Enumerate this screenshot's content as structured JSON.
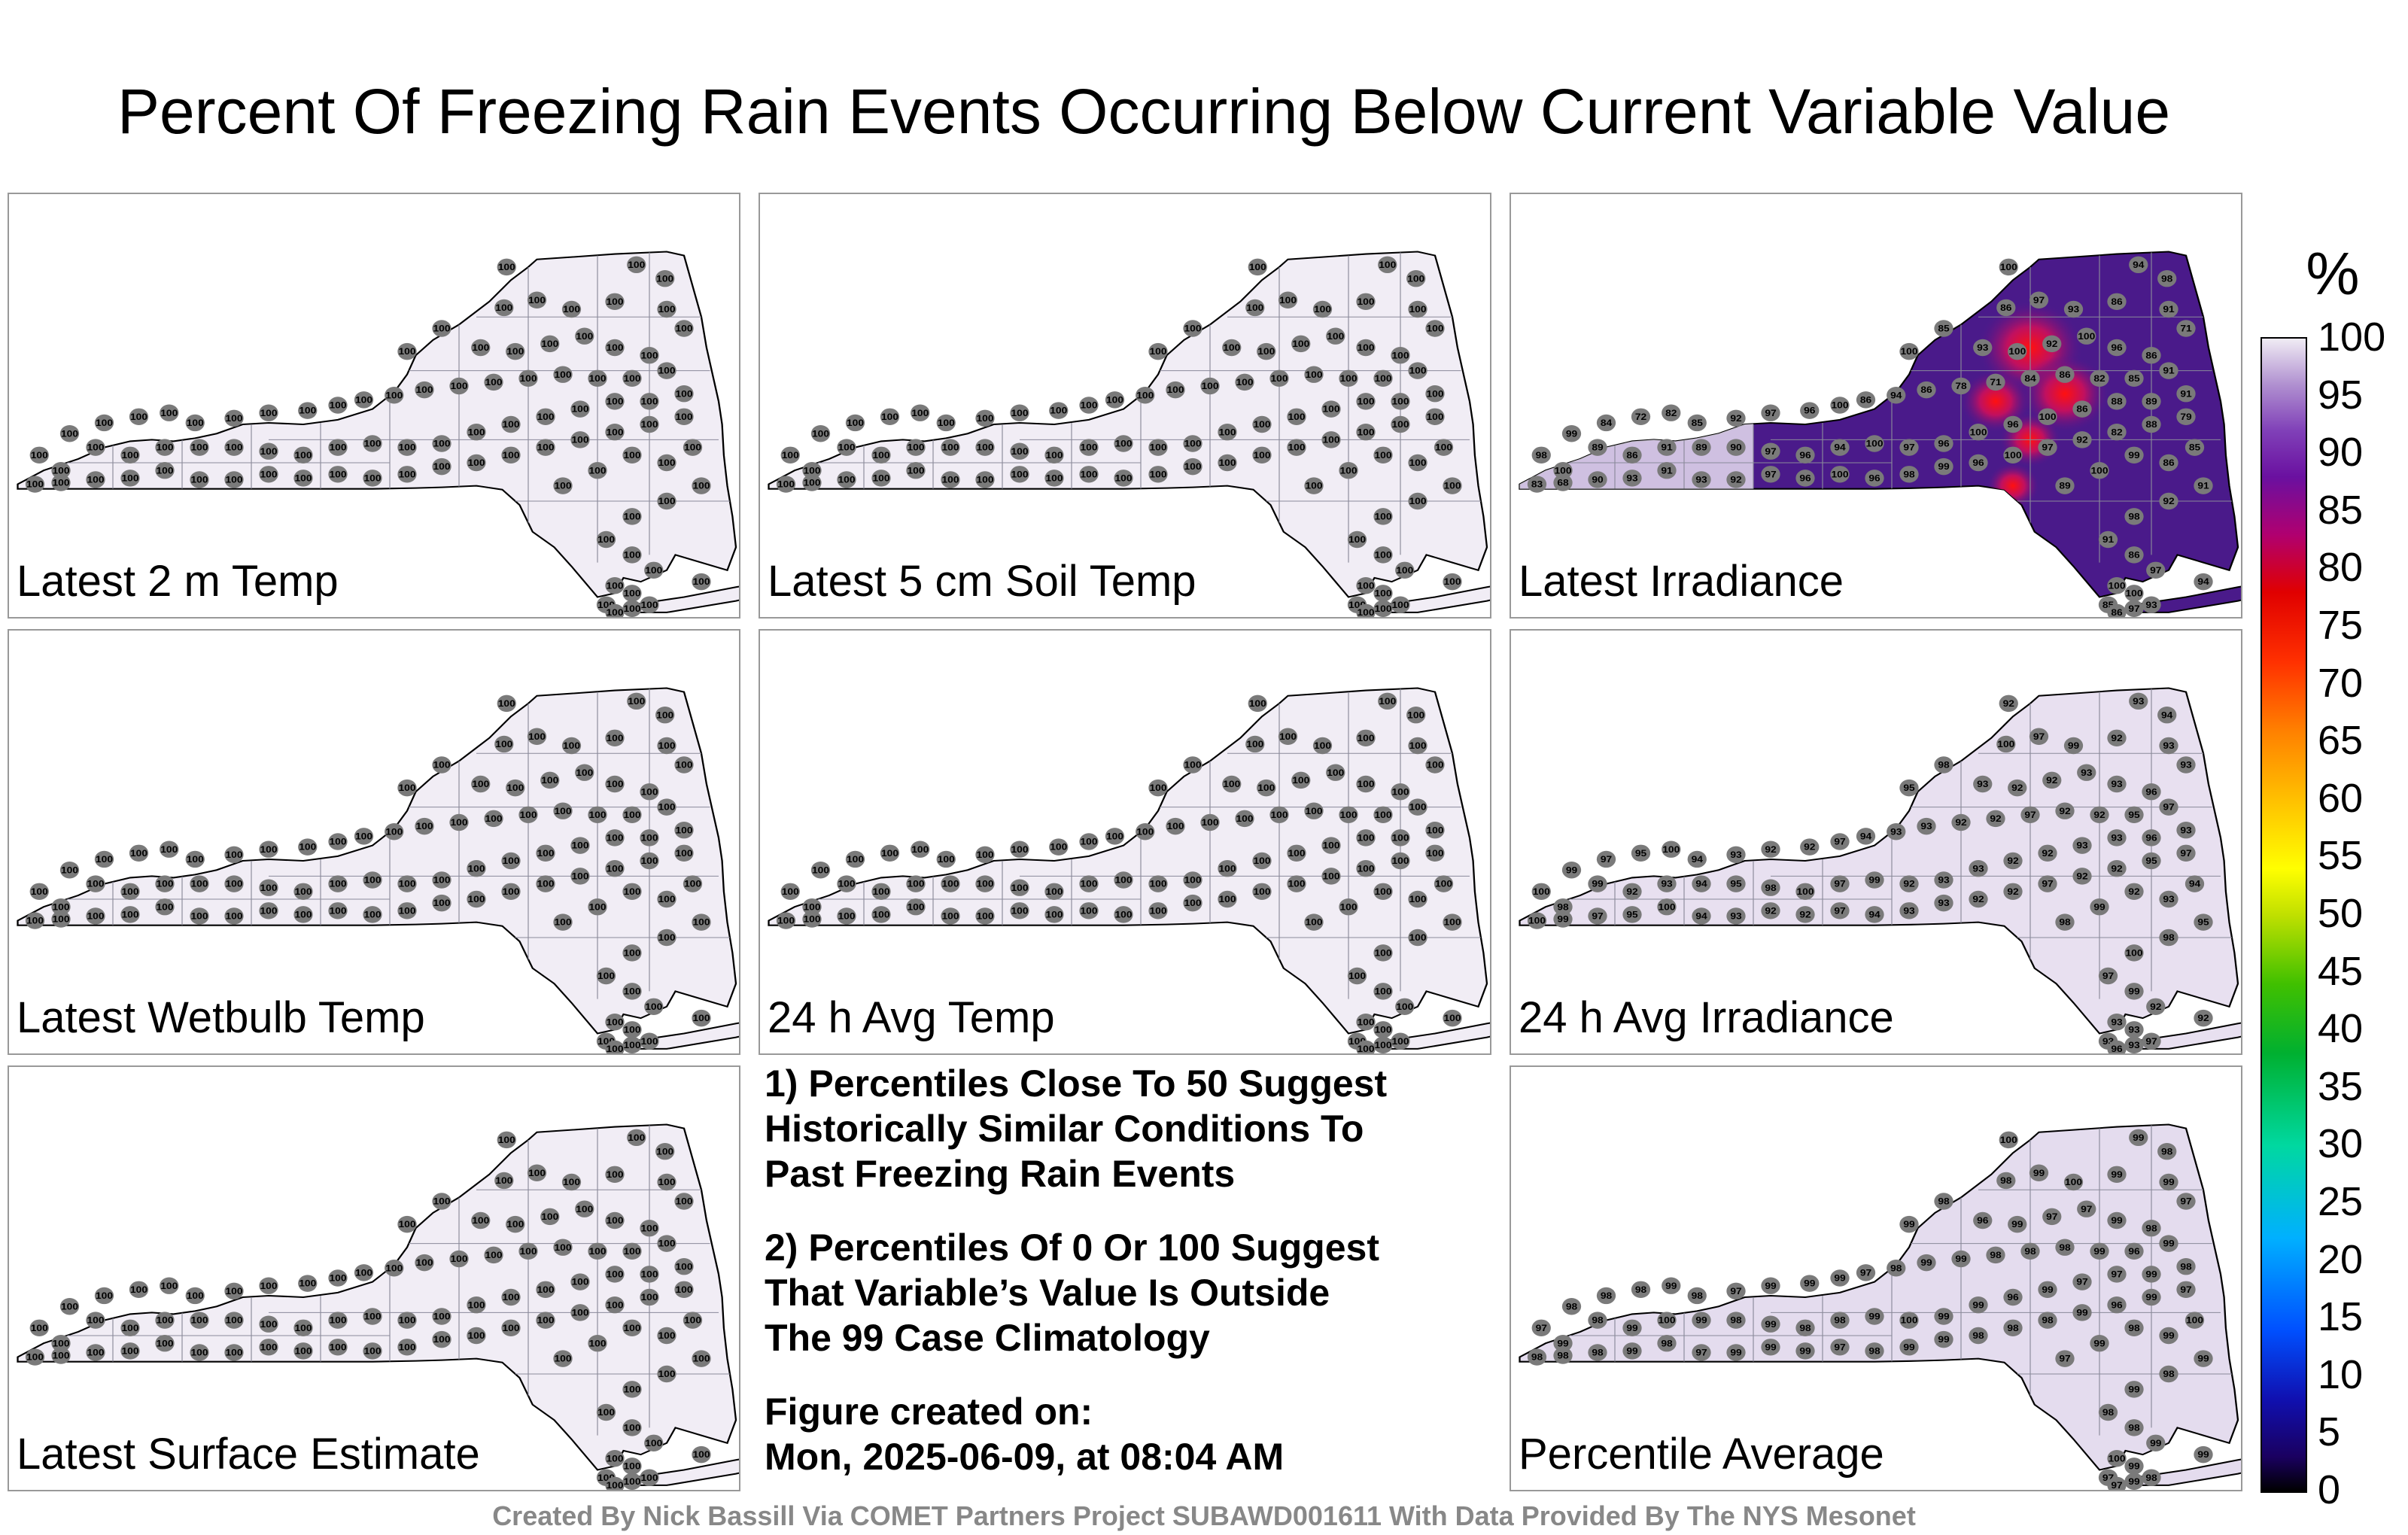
{
  "title": "Percent Of Freezing Rain Events Occurring Below Current Variable Value",
  "panels": [
    {
      "label": "Latest 2 m Temp",
      "fill": "#f1edf5",
      "hot": false
    },
    {
      "label": "Latest 5 cm Soil Temp",
      "fill": "#f1edf5",
      "hot": false
    },
    {
      "label": "Latest Irradiance",
      "fill": "#4a1a8a",
      "hot": true
    },
    {
      "label": "Latest Wetbulb Temp",
      "fill": "#f1edf5",
      "hot": false
    },
    {
      "label": "24 h Avg Temp",
      "fill": "#f1edf5",
      "hot": false
    },
    {
      "label": "24 h Avg Irradiance",
      "fill": "#e8e0f0",
      "hot": false
    },
    {
      "label": "Latest Surface Estimate",
      "fill": "#f1edf5",
      "hot": false
    },
    {
      "label": "Percentile Average",
      "fill": "#e4dcee",
      "hot": false
    }
  ],
  "notes": {
    "note1": "1) Percentiles Close To 50 Suggest\nHistorically Similar Conditions To\nPast Freezing Rain Events",
    "note2": "2) Percentiles Of 0 Or 100 Suggest\nThat Variable’s Value Is Outside\nThe 99 Case Climatology",
    "created": "Figure created on:\nMon, 2025-06-09, at 08:04 AM"
  },
  "footer": "Created By Nick Bassill Via COMET Partners Project SUBAWD001611 With Data Provided By The NYS Mesonet",
  "colorbar": {
    "unit": "%",
    "ticks": [
      "100",
      "95",
      "90",
      "85",
      "80",
      "75",
      "70",
      "65",
      "60",
      "55",
      "50",
      "45",
      "40",
      "35",
      "30",
      "25",
      "20",
      "15",
      "10",
      "5",
      "0"
    ]
  },
  "station_values": {
    "uniform_panels": "100",
    "irradiance": [
      "100",
      "94",
      "98",
      "100",
      "85",
      "86",
      "97",
      "93",
      "86",
      "91",
      "93",
      "100",
      "92",
      "100",
      "96",
      "86",
      "71",
      "91",
      "85",
      "82",
      "86",
      "84",
      "71",
      "78",
      "86",
      "94",
      "86",
      "100",
      "96",
      "97",
      "92",
      "85",
      "82",
      "72",
      "84",
      "99",
      "98",
      "100",
      "89",
      "86",
      "91",
      "89",
      "90",
      "97",
      "96",
      "94",
      "100",
      "97",
      "96",
      "100",
      "96",
      "100",
      "86",
      "88",
      "89",
      "91",
      "79",
      "88",
      "82",
      "92",
      "97",
      "100",
      "96",
      "99",
      "98",
      "96",
      "100",
      "96",
      "97",
      "92",
      "93",
      "91",
      "93",
      "90",
      "68",
      "83",
      "89",
      "100",
      "99",
      "86",
      "85",
      "91",
      "92",
      "98",
      "91",
      "86",
      "97",
      "100"
    ],
    "avg_irradiance": [
      "92",
      "93",
      "94",
      "95",
      "98",
      "100",
      "97",
      "99",
      "92",
      "93",
      "93",
      "92",
      "92",
      "93",
      "93",
      "96",
      "93",
      "97",
      "95",
      "92",
      "92",
      "97",
      "92",
      "92",
      "93",
      "93",
      "94",
      "97",
      "92",
      "92",
      "93",
      "94",
      "100",
      "95",
      "97",
      "99",
      "100",
      "98",
      "99"
    ],
    "percentile_average": [
      "100",
      "99",
      "98",
      "99",
      "98",
      "98",
      "99",
      "100",
      "99",
      "99",
      "96",
      "99",
      "97",
      "97",
      "99",
      "98",
      "97",
      "99",
      "96",
      "99",
      "98",
      "98",
      "98",
      "99",
      "99",
      "98",
      "97",
      "99",
      "99",
      "99",
      "97",
      "98",
      "99",
      "98",
      "98",
      "98",
      "97",
      "99",
      "98",
      "99"
    ]
  }
}
